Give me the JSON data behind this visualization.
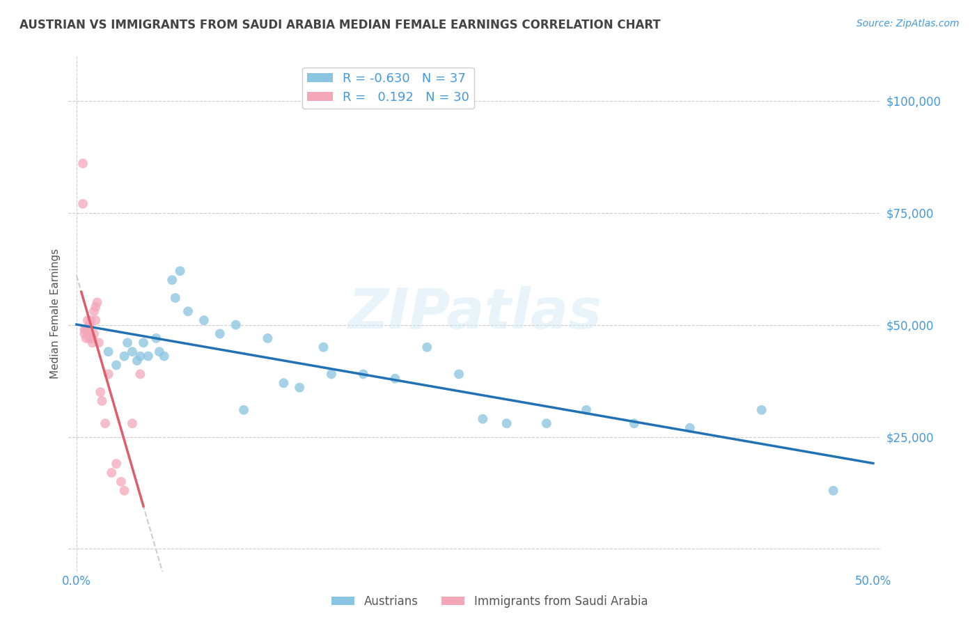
{
  "title": "AUSTRIAN VS IMMIGRANTS FROM SAUDI ARABIA MEDIAN FEMALE EARNINGS CORRELATION CHART",
  "source": "Source: ZipAtlas.com",
  "ylabel": "Median Female Earnings",
  "xlim": [
    -0.005,
    0.505
  ],
  "ylim": [
    -5000,
    110000
  ],
  "yticks": [
    0,
    25000,
    50000,
    75000,
    100000
  ],
  "ytick_labels": [
    "",
    "$25,000",
    "$50,000",
    "$75,000",
    "$100,000"
  ],
  "xticks": [
    0.0,
    0.1,
    0.2,
    0.3,
    0.4,
    0.5
  ],
  "xtick_labels": [
    "0.0%",
    "",
    "",
    "",
    "",
    "50.0%"
  ],
  "blue_color": "#89c4e1",
  "pink_color": "#f4a7b9",
  "trend_blue": "#2171b5",
  "trend_pink": "#e05c6a",
  "trend_dashed_color": "#cccccc",
  "background": "#ffffff",
  "grid_color": "#cccccc",
  "R_blue": -0.63,
  "N_blue": 37,
  "R_pink": 0.192,
  "N_pink": 30,
  "blue_label": "Austrians",
  "pink_label": "Immigrants from Saudi Arabia",
  "title_color": "#444444",
  "axis_label_color": "#555555",
  "tick_color": "#4499dd",
  "watermark": "ZIPatlas",
  "austrians_x": [
    0.02,
    0.025,
    0.03,
    0.032,
    0.035,
    0.038,
    0.04,
    0.042,
    0.045,
    0.05,
    0.052,
    0.055,
    0.06,
    0.062,
    0.065,
    0.07,
    0.08,
    0.09,
    0.1,
    0.105,
    0.12,
    0.13,
    0.14,
    0.155,
    0.16,
    0.18,
    0.2,
    0.22,
    0.24,
    0.255,
    0.27,
    0.295,
    0.32,
    0.35,
    0.385,
    0.43,
    0.475
  ],
  "austrians_y": [
    44000,
    41000,
    43000,
    46000,
    44000,
    42000,
    43000,
    46000,
    43000,
    47000,
    44000,
    43000,
    60000,
    56000,
    62000,
    53000,
    51000,
    48000,
    50000,
    31000,
    47000,
    37000,
    36000,
    45000,
    39000,
    39000,
    38000,
    45000,
    39000,
    29000,
    28000,
    28000,
    31000,
    28000,
    27000,
    31000,
    13000
  ],
  "saudi_x": [
    0.004,
    0.004,
    0.005,
    0.005,
    0.006,
    0.006,
    0.007,
    0.007,
    0.008,
    0.008,
    0.009,
    0.009,
    0.01,
    0.01,
    0.011,
    0.011,
    0.012,
    0.012,
    0.013,
    0.014,
    0.015,
    0.016,
    0.018,
    0.02,
    0.022,
    0.025,
    0.028,
    0.03,
    0.035,
    0.04
  ],
  "saudi_y": [
    86000,
    77000,
    49000,
    48000,
    49000,
    47000,
    51000,
    48000,
    47000,
    50000,
    47000,
    51000,
    47000,
    46000,
    48000,
    53000,
    51000,
    54000,
    55000,
    46000,
    35000,
    33000,
    28000,
    39000,
    17000,
    19000,
    15000,
    13000,
    28000,
    39000
  ]
}
